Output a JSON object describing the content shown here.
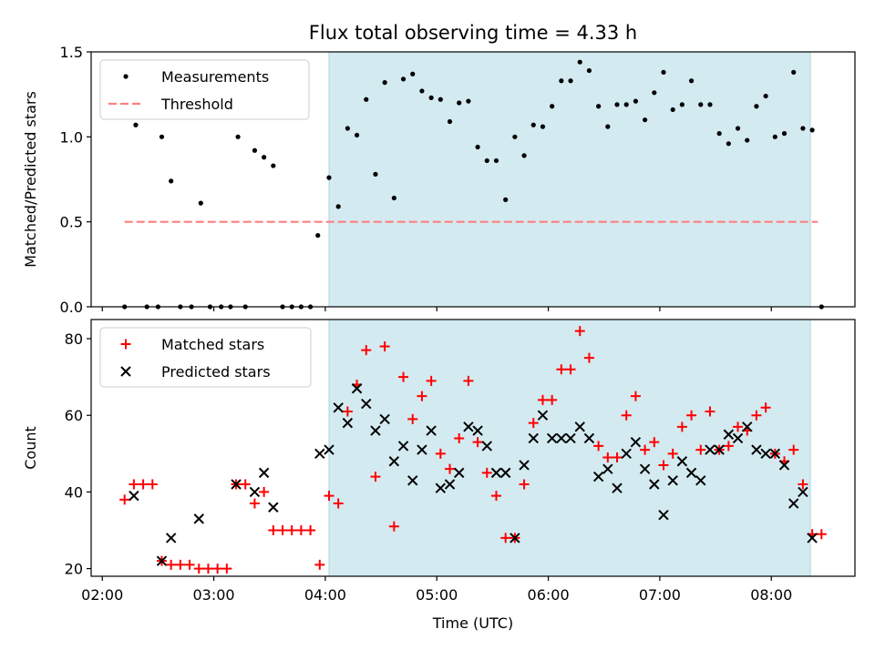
{
  "title": "Flux total observing time = 4.33 h",
  "chart_data": [
    {
      "type": "scatter",
      "panel": "top",
      "ylabel": "Matched/Predicted stars",
      "xlabel": "",
      "ylim": [
        0,
        1.5
      ],
      "xlim_hours": [
        1.9,
        8.75
      ],
      "x_ticks": [
        "02:00",
        "03:00",
        "04:00",
        "05:00",
        "06:00",
        "07:00",
        "08:00"
      ],
      "y_ticks": [
        "0.0",
        "0.5",
        "1.0",
        "1.5"
      ],
      "shaded_interval": [
        "04:02",
        "08:21"
      ],
      "legend_position": "upper left",
      "series": [
        {
          "name": "Measurements",
          "marker": "dot",
          "color": "#000000",
          "points": [
            [
              "02:12",
              0.0
            ],
            [
              "02:18",
              1.07
            ],
            [
              "02:24",
              0.0
            ],
            [
              "02:30",
              0.0
            ],
            [
              "02:32",
              1.0
            ],
            [
              "02:37",
              0.74
            ],
            [
              "02:42",
              0.0
            ],
            [
              "02:48",
              0.0
            ],
            [
              "02:53",
              0.61
            ],
            [
              "02:58",
              0.0
            ],
            [
              "03:04",
              0.0
            ],
            [
              "03:09",
              0.0
            ],
            [
              "03:13",
              1.0
            ],
            [
              "03:17",
              0.0
            ],
            [
              "03:22",
              0.92
            ],
            [
              "03:27",
              0.88
            ],
            [
              "03:32",
              0.83
            ],
            [
              "03:37",
              0.0
            ],
            [
              "03:42",
              0.0
            ],
            [
              "03:47",
              0.0
            ],
            [
              "03:52",
              0.0
            ],
            [
              "03:56",
              0.42
            ],
            [
              "04:02",
              0.76
            ],
            [
              "04:07",
              0.59
            ],
            [
              "04:12",
              1.05
            ],
            [
              "04:17",
              1.01
            ],
            [
              "04:22",
              1.22
            ],
            [
              "04:27",
              0.78
            ],
            [
              "04:32",
              1.32
            ],
            [
              "04:37",
              0.64
            ],
            [
              "04:42",
              1.34
            ],
            [
              "04:47",
              1.37
            ],
            [
              "04:52",
              1.27
            ],
            [
              "04:57",
              1.23
            ],
            [
              "05:02",
              1.22
            ],
            [
              "05:07",
              1.09
            ],
            [
              "05:12",
              1.2
            ],
            [
              "05:17",
              1.21
            ],
            [
              "05:22",
              0.94
            ],
            [
              "05:27",
              0.86
            ],
            [
              "05:32",
              0.86
            ],
            [
              "05:37",
              0.63
            ],
            [
              "05:42",
              1.0
            ],
            [
              "05:47",
              0.89
            ],
            [
              "05:52",
              1.07
            ],
            [
              "05:57",
              1.06
            ],
            [
              "06:02",
              1.18
            ],
            [
              "06:07",
              1.33
            ],
            [
              "06:12",
              1.33
            ],
            [
              "06:17",
              1.44
            ],
            [
              "06:22",
              1.39
            ],
            [
              "06:27",
              1.18
            ],
            [
              "06:32",
              1.06
            ],
            [
              "06:37",
              1.19
            ],
            [
              "06:42",
              1.19
            ],
            [
              "06:47",
              1.21
            ],
            [
              "06:52",
              1.1
            ],
            [
              "06:57",
              1.26
            ],
            [
              "07:02",
              1.38
            ],
            [
              "07:07",
              1.16
            ],
            [
              "07:12",
              1.19
            ],
            [
              "07:17",
              1.33
            ],
            [
              "07:22",
              1.19
            ],
            [
              "07:27",
              1.19
            ],
            [
              "07:32",
              1.02
            ],
            [
              "07:37",
              0.96
            ],
            [
              "07:42",
              1.05
            ],
            [
              "07:47",
              0.98
            ],
            [
              "07:52",
              1.18
            ],
            [
              "07:57",
              1.24
            ],
            [
              "08:02",
              1.0
            ],
            [
              "08:07",
              1.02
            ],
            [
              "08:12",
              1.38
            ],
            [
              "08:17",
              1.05
            ],
            [
              "08:22",
              1.04
            ],
            [
              "08:27",
              0.0
            ]
          ]
        },
        {
          "name": "Threshold",
          "marker": "dashed-line",
          "color": "#ff7f7f",
          "points": [
            [
              "02:12",
              0.5
            ],
            [
              "08:25",
              0.5
            ]
          ]
        }
      ]
    },
    {
      "type": "scatter",
      "panel": "bottom",
      "ylabel": "Count",
      "xlabel": "Time (UTC)",
      "ylim": [
        18,
        85
      ],
      "xlim_hours": [
        1.9,
        8.75
      ],
      "x_ticks": [
        "02:00",
        "03:00",
        "04:00",
        "05:00",
        "06:00",
        "07:00",
        "08:00"
      ],
      "y_ticks": [
        "20",
        "40",
        "60",
        "80"
      ],
      "shaded_interval": [
        "04:02",
        "08:21"
      ],
      "legend_position": "upper left",
      "series": [
        {
          "name": "Matched stars",
          "marker": "plus",
          "color": "#ff0000",
          "points": [
            [
              "02:12",
              38
            ],
            [
              "02:17",
              42
            ],
            [
              "02:22",
              42
            ],
            [
              "02:27",
              42
            ],
            [
              "02:32",
              22
            ],
            [
              "02:37",
              21
            ],
            [
              "02:42",
              21
            ],
            [
              "02:47",
              21
            ],
            [
              "02:52",
              20
            ],
            [
              "02:57",
              20
            ],
            [
              "03:02",
              20
            ],
            [
              "03:07",
              20
            ],
            [
              "03:12",
              42
            ],
            [
              "03:17",
              42
            ],
            [
              "03:22",
              37
            ],
            [
              "03:27",
              40
            ],
            [
              "03:32",
              30
            ],
            [
              "03:37",
              30
            ],
            [
              "03:42",
              30
            ],
            [
              "03:47",
              30
            ],
            [
              "03:52",
              30
            ],
            [
              "03:57",
              21
            ],
            [
              "04:02",
              39
            ],
            [
              "04:07",
              37
            ],
            [
              "04:12",
              61
            ],
            [
              "04:17",
              68
            ],
            [
              "04:22",
              77
            ],
            [
              "04:27",
              44
            ],
            [
              "04:32",
              78
            ],
            [
              "04:37",
              31
            ],
            [
              "04:42",
              70
            ],
            [
              "04:47",
              59
            ],
            [
              "04:52",
              65
            ],
            [
              "04:57",
              69
            ],
            [
              "05:02",
              50
            ],
            [
              "05:07",
              46
            ],
            [
              "05:12",
              54
            ],
            [
              "05:17",
              69
            ],
            [
              "05:22",
              53
            ],
            [
              "05:27",
              45
            ],
            [
              "05:32",
              39
            ],
            [
              "05:37",
              28
            ],
            [
              "05:42",
              28
            ],
            [
              "05:47",
              42
            ],
            [
              "05:52",
              58
            ],
            [
              "05:57",
              64
            ],
            [
              "06:02",
              64
            ],
            [
              "06:07",
              72
            ],
            [
              "06:12",
              72
            ],
            [
              "06:17",
              82
            ],
            [
              "06:22",
              75
            ],
            [
              "06:27",
              52
            ],
            [
              "06:32",
              49
            ],
            [
              "06:37",
              49
            ],
            [
              "06:42",
              60
            ],
            [
              "06:47",
              65
            ],
            [
              "06:52",
              51
            ],
            [
              "06:57",
              53
            ],
            [
              "07:02",
              47
            ],
            [
              "07:07",
              50
            ],
            [
              "07:12",
              57
            ],
            [
              "07:17",
              60
            ],
            [
              "07:22",
              51
            ],
            [
              "07:27",
              61
            ],
            [
              "07:32",
              51
            ],
            [
              "07:37",
              52
            ],
            [
              "07:42",
              57
            ],
            [
              "07:47",
              56
            ],
            [
              "07:52",
              60
            ],
            [
              "07:57",
              62
            ],
            [
              "08:02",
              50
            ],
            [
              "08:07",
              48
            ],
            [
              "08:12",
              51
            ],
            [
              "08:17",
              42
            ],
            [
              "08:22",
              29
            ],
            [
              "08:27",
              29
            ]
          ]
        },
        {
          "name": "Predicted stars",
          "marker": "x",
          "color": "#000000",
          "points": [
            [
              "02:17",
              39
            ],
            [
              "02:32",
              22
            ],
            [
              "02:37",
              28
            ],
            [
              "02:52",
              33
            ],
            [
              "03:12",
              42
            ],
            [
              "03:22",
              40
            ],
            [
              "03:27",
              45
            ],
            [
              "03:32",
              36
            ],
            [
              "03:57",
              50
            ],
            [
              "04:02",
              51
            ],
            [
              "04:07",
              62
            ],
            [
              "04:12",
              58
            ],
            [
              "04:17",
              67
            ],
            [
              "04:22",
              63
            ],
            [
              "04:27",
              56
            ],
            [
              "04:32",
              59
            ],
            [
              "04:37",
              48
            ],
            [
              "04:42",
              52
            ],
            [
              "04:47",
              43
            ],
            [
              "04:52",
              51
            ],
            [
              "04:57",
              56
            ],
            [
              "05:02",
              41
            ],
            [
              "05:07",
              42
            ],
            [
              "05:12",
              45
            ],
            [
              "05:17",
              57
            ],
            [
              "05:22",
              56
            ],
            [
              "05:27",
              52
            ],
            [
              "05:32",
              45
            ],
            [
              "05:37",
              45
            ],
            [
              "05:42",
              28
            ],
            [
              "05:47",
              47
            ],
            [
              "05:52",
              54
            ],
            [
              "05:57",
              60
            ],
            [
              "06:02",
              54
            ],
            [
              "06:07",
              54
            ],
            [
              "06:12",
              54
            ],
            [
              "06:17",
              57
            ],
            [
              "06:22",
              54
            ],
            [
              "06:27",
              44
            ],
            [
              "06:32",
              46
            ],
            [
              "06:37",
              41
            ],
            [
              "06:42",
              50
            ],
            [
              "06:47",
              53
            ],
            [
              "06:52",
              46
            ],
            [
              "06:57",
              42
            ],
            [
              "07:02",
              34
            ],
            [
              "07:07",
              43
            ],
            [
              "07:12",
              48
            ],
            [
              "07:17",
              45
            ],
            [
              "07:22",
              43
            ],
            [
              "07:27",
              51
            ],
            [
              "07:32",
              51
            ],
            [
              "07:37",
              55
            ],
            [
              "07:42",
              54
            ],
            [
              "07:47",
              57
            ],
            [
              "07:52",
              51
            ],
            [
              "07:57",
              50
            ],
            [
              "08:02",
              50
            ],
            [
              "08:07",
              47
            ],
            [
              "08:12",
              37
            ],
            [
              "08:17",
              40
            ],
            [
              "08:22",
              28
            ]
          ]
        }
      ]
    }
  ]
}
